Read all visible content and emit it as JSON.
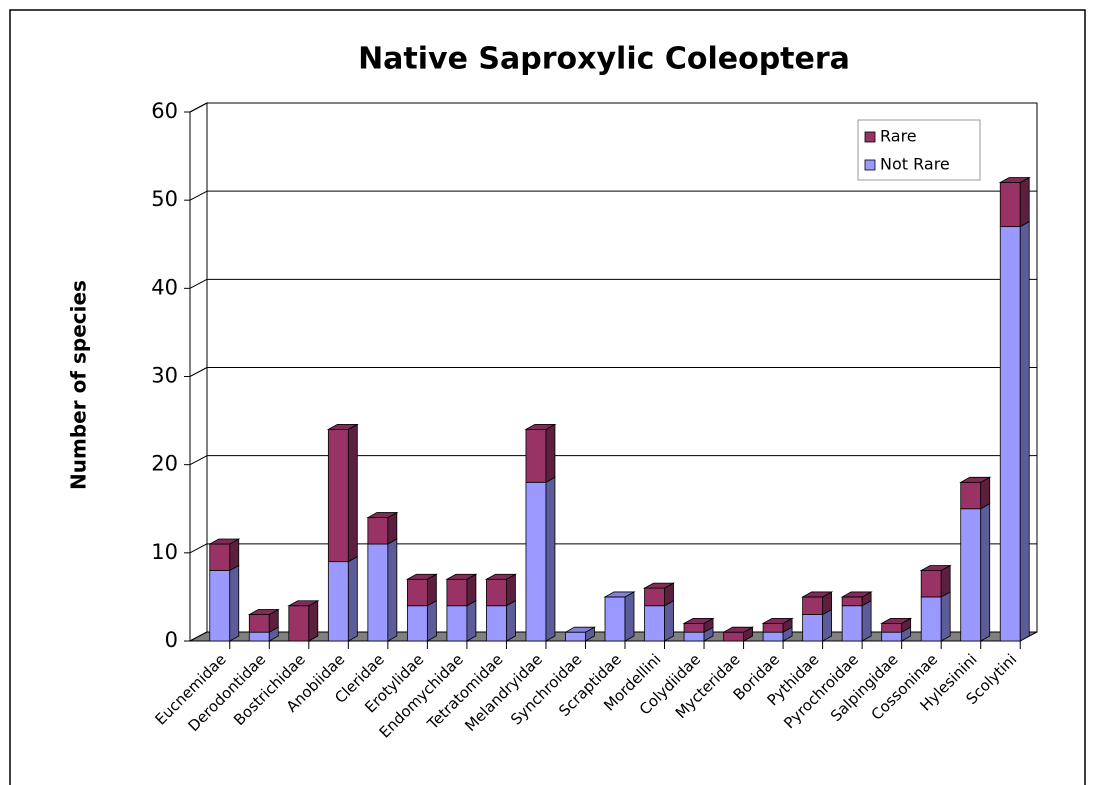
{
  "chart_data": {
    "type": "bar3d_stacked",
    "title": "Native Saproxylic Coleoptera",
    "y_label": "Number of species",
    "categories": [
      "Eucnemidae",
      "Derodontidae",
      "Bostrichidae",
      "Anobiidae",
      "Cleridae",
      "Erotylidae",
      "Endomychidae",
      "Tetratomidae",
      "Melandryidae",
      "Synchroidae",
      "Scraptidae",
      "Mordellini",
      "Colydiidae",
      "Mycteridae",
      "Boridae",
      "Pythidae",
      "Pyrochroidae",
      "Salpingidae",
      "Cossoninae",
      "Hylesinini",
      "Scolytini"
    ],
    "series": [
      {
        "name": "Not Rare",
        "color": "#9999ff",
        "values": [
          8,
          1,
          0,
          9,
          11,
          4,
          4,
          4,
          18,
          1,
          5,
          4,
          1,
          0,
          1,
          3,
          4,
          1,
          5,
          15,
          47
        ]
      },
      {
        "name": "Rare",
        "color": "#993366",
        "values": [
          3,
          2,
          4,
          15,
          3,
          3,
          3,
          3,
          6,
          0,
          0,
          2,
          1,
          1,
          1,
          2,
          1,
          1,
          3,
          3,
          5
        ]
      }
    ],
    "ylim": [
      0,
      60
    ],
    "yticks": [
      0,
      10,
      20,
      30,
      40,
      50,
      60
    ],
    "grid": true,
    "legend": "top-right"
  }
}
